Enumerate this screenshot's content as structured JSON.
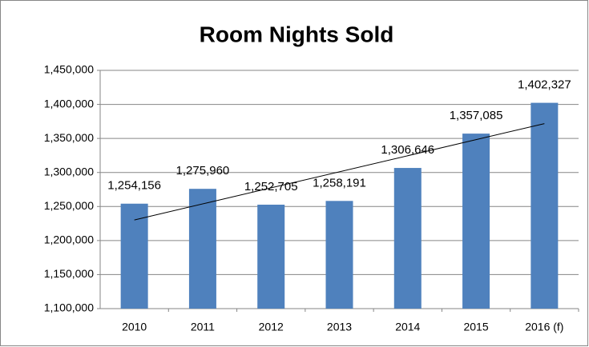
{
  "chart_data": {
    "type": "bar",
    "title": "Room Nights Sold",
    "categories": [
      "2010",
      "2011",
      "2012",
      "2013",
      "2014",
      "2015",
      "2016 (f)"
    ],
    "values": [
      1254156,
      1275960,
      1252705,
      1258191,
      1306646,
      1357085,
      1402327
    ],
    "value_labels": [
      "1,254,156",
      "1,275,960",
      "1,252,705",
      "1,258,191",
      "1,306,646",
      "1,357,085",
      "1,402,327"
    ],
    "color": "#4f81bd",
    "ylim": [
      1100000,
      1450000
    ],
    "yticks": [
      {
        "value": 1100000,
        "label": "1,100,000"
      },
      {
        "value": 1150000,
        "label": "1,150,000"
      },
      {
        "value": 1200000,
        "label": "1,200,000"
      },
      {
        "value": 1250000,
        "label": "1,250,000"
      },
      {
        "value": 1300000,
        "label": "1,300,000"
      },
      {
        "value": 1350000,
        "label": "1,350,000"
      },
      {
        "value": 1400000,
        "label": "1,400,000"
      },
      {
        "value": 1450000,
        "label": "1,450,000"
      }
    ],
    "grid": true,
    "trendline": "linear"
  }
}
